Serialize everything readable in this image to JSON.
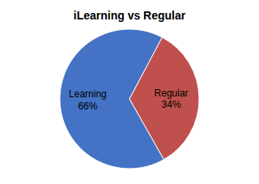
{
  "chart_data": {
    "type": "pie",
    "title": "iLearning vs Regular",
    "categories": [
      "Learning",
      "Regular"
    ],
    "values": [
      66,
      34
    ],
    "value_labels": [
      "66%",
      "34%"
    ],
    "data_labels": true,
    "colors": [
      "#4472C4",
      "#C0504D"
    ]
  }
}
